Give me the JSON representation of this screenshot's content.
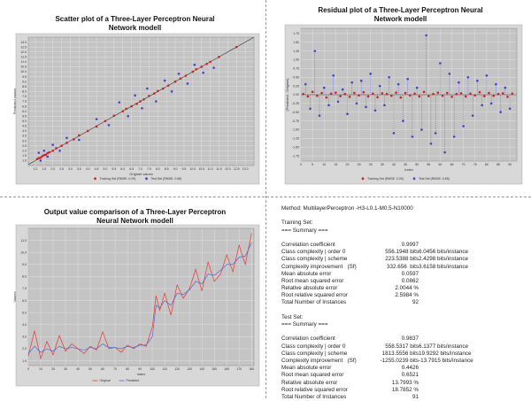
{
  "chart_data": [
    {
      "type": "scatter",
      "title": "Scatter plot of a Three-Layer Perceptron Neural Network modell",
      "xlabel": "Originel values",
      "ylabel": "Predicted values",
      "xlim": [
        0.6,
        13.5
      ],
      "ylim": [
        0.5,
        13.5
      ],
      "xticks": [
        "1.0",
        "1.5",
        "2.0",
        "2.5",
        "3.0",
        "3.5",
        "4.0",
        "4.5",
        "5.0",
        "5.5",
        "6.0",
        "6.5",
        "7.0",
        "7.5",
        "8.0",
        "8.5",
        "9.0",
        "9.5",
        "10.0",
        "10.5",
        "11.0",
        "11.5",
        "12.0",
        "12.5",
        "13.0"
      ],
      "yticks": [
        "1.0",
        "1.5",
        "2.0",
        "2.5",
        "3.0",
        "3.5",
        "4.0",
        "4.5",
        "5.0",
        "5.5",
        "6.0",
        "6.5",
        "7.0",
        "7.5",
        "8.0",
        "8.5",
        "9.0",
        "9.5",
        "10.0",
        "10.5",
        "11.0",
        "11.5",
        "12.0",
        "12.5",
        "13.0"
      ],
      "legend": [
        "Training Set (RMSE: 0.09)",
        "Test Set (RMSE: 0.65)"
      ],
      "legend_position": "bottom",
      "grid": true,
      "series": [
        {
          "name": "Training Set (RMSE: 0.09)",
          "color": "#cc2222",
          "x": [
            1.1,
            1.2,
            1.3,
            1.4,
            1.5,
            1.6,
            1.7,
            1.8,
            2.0,
            2.2,
            2.5,
            2.8,
            3.2,
            3.5,
            4.0,
            4.5,
            5.0,
            5.5,
            6.0,
            6.2,
            6.5,
            6.8,
            7.0,
            7.2,
            7.5,
            7.8,
            8.0,
            8.3,
            8.6,
            9.0,
            9.3,
            9.6,
            10.0,
            10.2,
            10.5,
            10.8,
            11.0,
            11.5,
            12.5
          ],
          "y": [
            1.15,
            1.25,
            1.3,
            1.45,
            1.55,
            1.6,
            1.75,
            1.85,
            2.0,
            2.25,
            2.5,
            2.8,
            3.15,
            3.55,
            4.0,
            4.45,
            5.0,
            5.55,
            6.0,
            6.25,
            6.5,
            6.75,
            7.0,
            7.2,
            7.55,
            7.8,
            8.05,
            8.3,
            8.6,
            9.0,
            9.3,
            9.6,
            10.0,
            10.25,
            10.5,
            10.8,
            11.0,
            11.5,
            12.5
          ]
        },
        {
          "name": "Test Set (RMSE: 0.65)",
          "color": "#4444cc",
          "x": [
            1.2,
            1.3,
            1.5,
            1.7,
            2.0,
            2.4,
            2.8,
            3.5,
            4.5,
            5.2,
            5.8,
            6.3,
            6.7,
            7.1,
            7.4,
            7.9,
            8.4,
            8.8,
            9.2,
            9.7,
            10.1,
            10.6,
            11.2
          ],
          "y": [
            1.8,
            1.0,
            2.0,
            1.4,
            2.6,
            2.0,
            3.3,
            3.1,
            5.2,
            4.6,
            6.9,
            5.5,
            7.6,
            6.3,
            8.3,
            7.0,
            9.1,
            8.0,
            9.8,
            8.8,
            10.7,
            9.9,
            10.4
          ]
        }
      ]
    },
    {
      "type": "scatter",
      "title": "Residual plot of a Three-Layer Perceptron Neural Network modell",
      "xlabel": "Index",
      "ylabel": "(Predicted - Originel)",
      "xlim": [
        0,
        93
      ],
      "ylim": [
        -1.9,
        1.9
      ],
      "xticks": [
        "0",
        "5",
        "10",
        "15",
        "20",
        "25",
        "30",
        "35",
        "40",
        "45",
        "50",
        "55",
        "60",
        "65",
        "70",
        "75",
        "80",
        "85",
        "90"
      ],
      "yticks": [
        "1.75",
        "1.50",
        "1.25",
        "1.00",
        "0.75",
        "0.50",
        "0.25",
        "0.00",
        "-0.25",
        "-0.50",
        "-0.75",
        "-1.00",
        "-1.25",
        "-1.50",
        "-1.75"
      ],
      "legend": [
        "Training Set (RMSE: 0.09)",
        "Test Set (RMSE: 0.65)"
      ],
      "legend_position": "bottom",
      "grid": true,
      "series": [
        {
          "name": "Training Set (RMSE: 0.09)",
          "color": "#cc2222",
          "x": [
            1,
            3,
            5,
            7,
            9,
            11,
            13,
            15,
            17,
            19,
            21,
            23,
            25,
            27,
            29,
            31,
            33,
            35,
            37,
            39,
            41,
            43,
            45,
            47,
            49,
            51,
            53,
            55,
            57,
            59,
            61,
            63,
            65,
            67,
            69,
            71,
            73,
            75,
            77,
            79,
            81,
            83,
            85,
            87,
            89,
            91
          ],
          "y": [
            0.02,
            -0.05,
            0.08,
            -0.03,
            0.05,
            -0.08,
            0.03,
            0.06,
            -0.04,
            0.02,
            -0.06,
            0.05,
            -0.02,
            0.07,
            -0.05,
            0.03,
            -0.07,
            0.04,
            0.02,
            -0.03,
            0.06,
            -0.08,
            0.05,
            -0.02,
            0.03,
            -0.05,
            0.08,
            -0.04,
            0.02,
            0.06,
            -0.03,
            0.05,
            -0.06,
            0.02,
            0.04,
            -0.05,
            0.03,
            -0.02,
            0.07,
            -0.04,
            0.05,
            -0.03,
            0.02,
            0.04,
            -0.06,
            0.03
          ]
        },
        {
          "name": "Test Set (RMSE: 0.65)",
          "color": "#4444cc",
          "x": [
            2,
            4,
            6,
            8,
            10,
            12,
            14,
            16,
            18,
            20,
            22,
            24,
            26,
            28,
            30,
            32,
            34,
            36,
            38,
            40,
            42,
            44,
            46,
            48,
            50,
            52,
            54,
            56,
            58,
            60,
            62,
            64,
            66,
            68,
            70,
            72,
            74,
            76,
            78,
            80,
            82,
            84,
            86,
            88,
            90
          ],
          "y": [
            0.3,
            -0.4,
            1.25,
            -0.6,
            0.2,
            -0.3,
            0.55,
            -0.2,
            0.15,
            -0.55,
            0.35,
            -0.25,
            0.4,
            -0.35,
            0.6,
            -0.45,
            0.25,
            -0.3,
            0.5,
            -1.1,
            0.3,
            -0.75,
            0.45,
            -1.2,
            0.2,
            -1.0,
            1.7,
            -1.4,
            -1.1,
            0.9,
            -1.65,
            0.6,
            -1.2,
            0.35,
            -0.9,
            0.5,
            -0.6,
            0.4,
            -0.3,
            0.55,
            -0.25,
            0.3,
            -0.5,
            0.2,
            -0.4
          ]
        }
      ]
    },
    {
      "type": "line",
      "title": "Output value comparison  of a Three-Layer Perceptron Neural Network modell",
      "xlabel": "Index",
      "ylabel": "Values",
      "xlim": [
        0,
        182
      ],
      "ylim": [
        0.6,
        12.0
      ],
      "xticks": [
        "0",
        "10",
        "20",
        "30",
        "40",
        "50",
        "60",
        "70",
        "80",
        "90",
        "100",
        "110",
        "120",
        "130",
        "140",
        "150",
        "160",
        "170",
        "180"
      ],
      "yticks": [
        "1.0",
        "2.0",
        "3.0",
        "4.0",
        "5.0",
        "6.0",
        "7.0",
        "8.0",
        "9.0",
        "10.0",
        "11.0"
      ],
      "legend": [
        "Original",
        "Predicted"
      ],
      "legend_position": "bottom",
      "grid": true,
      "series": [
        {
          "name": "Original",
          "color": "#ee3333",
          "x": [
            0,
            5,
            10,
            15,
            20,
            25,
            30,
            35,
            40,
            45,
            50,
            55,
            60,
            65,
            70,
            75,
            80,
            85,
            90,
            95,
            100,
            103,
            106,
            110,
            115,
            120,
            125,
            130,
            135,
            140,
            145,
            150,
            155,
            160,
            165,
            170,
            175,
            180
          ],
          "y": [
            1.4,
            3.5,
            1.2,
            2.6,
            1.5,
            3.1,
            1.8,
            2.4,
            2.0,
            1.6,
            2.2,
            1.9,
            3.4,
            2.0,
            2.1,
            1.7,
            2.3,
            2.0,
            2.4,
            2.2,
            3.8,
            6.4,
            5.2,
            6.6,
            4.8,
            7.3,
            6.2,
            7.0,
            8.6,
            6.8,
            9.2,
            7.6,
            8.2,
            9.8,
            8.4,
            10.6,
            9.0,
            11.6
          ]
        },
        {
          "name": "Predicted",
          "color": "#5566cc",
          "x": [
            0,
            5,
            10,
            15,
            20,
            25,
            30,
            35,
            40,
            45,
            50,
            55,
            60,
            65,
            70,
            75,
            80,
            85,
            90,
            95,
            100,
            103,
            106,
            110,
            115,
            120,
            125,
            130,
            135,
            140,
            145,
            150,
            155,
            160,
            165,
            170,
            175,
            180
          ],
          "y": [
            1.6,
            2.2,
            1.7,
            2.0,
            1.8,
            2.2,
            2.0,
            2.1,
            2.0,
            1.9,
            2.1,
            2.0,
            2.4,
            2.1,
            2.1,
            2.0,
            2.2,
            2.1,
            2.3,
            2.3,
            3.0,
            5.6,
            5.4,
            6.0,
            5.6,
            6.6,
            6.5,
            6.9,
            7.6,
            7.4,
            8.2,
            8.1,
            8.5,
            9.0,
            9.0,
            9.6,
            9.7,
            10.8
          ]
        }
      ]
    }
  ],
  "summary": {
    "method": "Method: MultilayerPerceptron -H3-L0.1-M0.5-N10000",
    "training": {
      "heading": "Training Set:",
      "subheading": "=== Summary ===",
      "rows": [
        {
          "label": "Correlation coefficient",
          "v1": "0.9997",
          "v2": ""
        },
        {
          "label": "Class complexity | order 0",
          "v1": "556.1948 bits",
          "v2": "6.0456 bits/instance"
        },
        {
          "label": "Class complexity | scheme",
          "v1": "223.5388 bits",
          "v2": "2.4298 bits/instance"
        },
        {
          "label": "Complexity improvement   (Sf)",
          "v1": "332.656  bits",
          "v2": "3.6158 bits/instance"
        },
        {
          "label": "Mean absolute error",
          "v1": "0.0597",
          "v2": ""
        },
        {
          "label": "Root mean squared error",
          "v1": "0.0862",
          "v2": ""
        },
        {
          "label": "Relative absolute error",
          "v1": "2.0044 %",
          "v2": ""
        },
        {
          "label": "Root relative squared error",
          "v1": "2.5984 %",
          "v2": ""
        },
        {
          "label": "Total Number of Instances",
          "v1": "92",
          "v2": ""
        }
      ]
    },
    "test": {
      "heading": "Test Set:",
      "subheading": "=== Summary ===",
      "rows": [
        {
          "label": "Correlation coefficient",
          "v1": "0.9837",
          "v2": ""
        },
        {
          "label": "Class complexity | order 0",
          "v1": "558.5317 bits",
          "v2": "6.1377 bits/instance"
        },
        {
          "label": "Class complexity | scheme",
          "v1": "1813.5556 bits",
          "v2": "19.9292 bits/instance"
        },
        {
          "label": "Complexity improvement   (Sf)",
          "v1": "-1255.0239 bits",
          "v2": "-13.7915 bits/instance"
        },
        {
          "label": "Mean absolute error",
          "v1": "0.4426",
          "v2": ""
        },
        {
          "label": "Root mean squared error",
          "v1": "0.6521",
          "v2": ""
        },
        {
          "label": "Relative absolute error",
          "v1": "13.7993 %",
          "v2": ""
        },
        {
          "label": "Root relative squared error",
          "v1": "18.7852 %",
          "v2": ""
        },
        {
          "label": "Total Number of Instances",
          "v1": "91",
          "v2": ""
        }
      ]
    }
  }
}
